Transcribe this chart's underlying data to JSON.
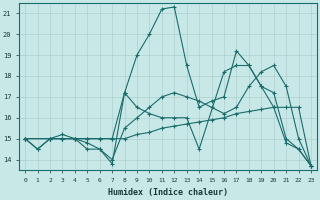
{
  "background_color": "#c8e8e8",
  "grid_color": "#b0d0d0",
  "line_color": "#1a6b6b",
  "xlabel": "Humidex (Indice chaleur)",
  "ylim": [
    13.5,
    21.5
  ],
  "xlim": [
    -0.5,
    23.5
  ],
  "yticks": [
    14,
    15,
    16,
    17,
    18,
    19,
    20,
    21
  ],
  "xticks": [
    0,
    1,
    2,
    3,
    4,
    5,
    6,
    7,
    8,
    9,
    10,
    11,
    12,
    13,
    14,
    15,
    16,
    17,
    18,
    19,
    20,
    21,
    22,
    23
  ],
  "lines": [
    {
      "x": [
        0,
        2,
        3,
        4,
        5,
        6,
        7,
        8,
        9,
        10,
        11,
        12,
        13,
        14,
        15,
        16,
        17,
        18,
        19,
        20,
        21,
        22,
        23
      ],
      "y": [
        15.0,
        15.0,
        15.0,
        15.0,
        15.0,
        15.0,
        15.0,
        15.0,
        15.2,
        15.3,
        15.5,
        15.6,
        15.7,
        15.8,
        15.9,
        16.0,
        16.2,
        16.3,
        16.4,
        16.5,
        16.5,
        16.5,
        13.7
      ]
    },
    {
      "x": [
        0,
        2,
        3,
        4,
        5,
        6,
        7,
        8,
        9,
        10,
        11,
        12,
        13,
        14,
        15,
        16,
        17,
        18,
        19,
        20,
        21,
        22,
        23
      ],
      "y": [
        15.0,
        15.0,
        15.0,
        15.0,
        15.0,
        15.0,
        15.0,
        17.2,
        19.0,
        20.0,
        21.2,
        21.3,
        18.5,
        16.5,
        16.8,
        17.0,
        19.2,
        18.5,
        17.5,
        17.2,
        15.0,
        14.5,
        13.7
      ]
    },
    {
      "x": [
        0,
        1,
        2,
        3,
        4,
        5,
        6,
        7,
        8,
        9,
        10,
        11,
        12,
        13,
        14,
        16,
        17,
        18,
        19,
        20,
        21,
        22,
        23
      ],
      "y": [
        15.0,
        14.5,
        15.0,
        15.0,
        15.0,
        14.5,
        14.5,
        13.8,
        17.2,
        16.5,
        16.2,
        16.0,
        16.0,
        16.0,
        14.5,
        18.2,
        18.5,
        18.5,
        17.5,
        16.5,
        14.8,
        14.5,
        13.7
      ]
    },
    {
      "x": [
        0,
        1,
        2,
        3,
        4,
        5,
        6,
        7,
        8,
        9,
        10,
        11,
        12,
        13,
        14,
        15,
        16,
        17,
        18,
        19,
        20,
        21,
        22,
        23
      ],
      "y": [
        15.0,
        14.5,
        15.0,
        15.2,
        15.0,
        14.8,
        14.5,
        14.0,
        15.5,
        16.0,
        16.5,
        17.0,
        17.2,
        17.0,
        16.8,
        16.5,
        16.2,
        16.5,
        17.5,
        18.2,
        18.5,
        17.5,
        15.0,
        13.7
      ]
    }
  ]
}
